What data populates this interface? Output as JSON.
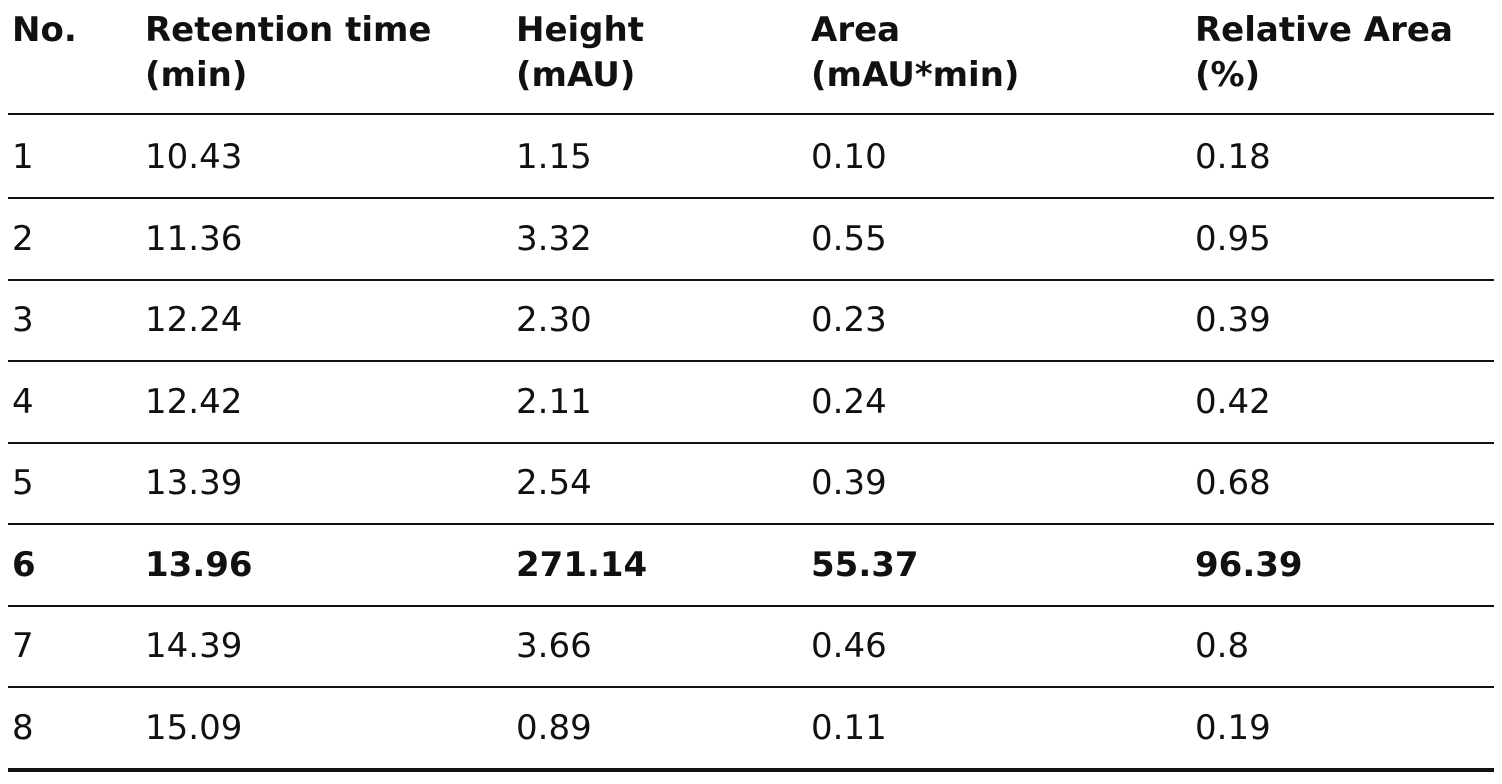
{
  "table": {
    "header": [
      [
        "No."
      ],
      [
        "Retention time",
        "(min)"
      ],
      [
        "Height",
        "(mAU)"
      ],
      [
        "Area",
        "(mAU*min)"
      ],
      [
        "Relative Area",
        "(%)"
      ]
    ],
    "rows": [
      [
        "1",
        "10.43",
        "1.15",
        "0.10",
        "0.18"
      ],
      [
        "2",
        "11.36",
        "3.32",
        "0.55",
        "0.95"
      ],
      [
        "3",
        "12.24",
        "2.30",
        "0.23",
        "0.39"
      ],
      [
        "4",
        "12.42",
        "2.11",
        "0.24",
        "0.42"
      ],
      [
        "5",
        "13.39",
        "2.54",
        "0.39",
        "0.68"
      ],
      [
        "6",
        "13.96",
        "271.14",
        "55.37",
        "96.39"
      ],
      [
        "7",
        "14.39",
        "3.66",
        "0.46",
        "0.8"
      ],
      [
        "8",
        "15.09",
        "0.89",
        "0.11",
        "0.19"
      ]
    ]
  }
}
